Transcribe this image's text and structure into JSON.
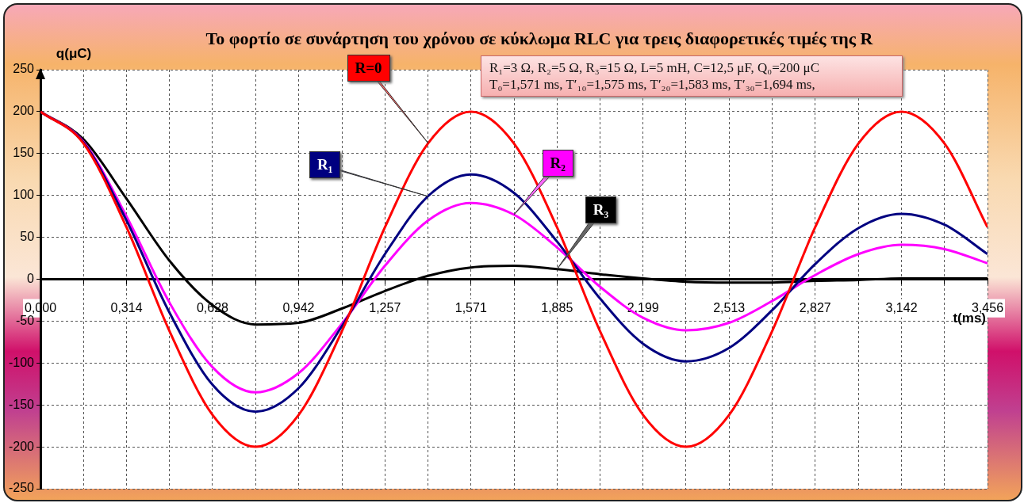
{
  "chart_data": {
    "type": "line",
    "title": "Το φορτίο σε συνάρτηση του χρόνου σε κύκλωμα RLC για τρεις διαφορετικές τιμές της R",
    "xlabel": "t(ms)",
    "ylabel": "q(μC)",
    "annotations": [
      "R₁=3 Ω, R₂=5 Ω, R₃=15 Ω, L=5 mH, C=12,5 μF, Q₀=200 μC",
      "T₀=1,571 ms, T′₁₀=1,575 ms, T′₂₀=1,583 ms, T′₃₀=1,694 ms,"
    ],
    "x": [
      0,
      0.157,
      0.314,
      0.471,
      0.628,
      0.785,
      0.942,
      1.1,
      1.257,
      1.414,
      1.571,
      1.728,
      1.885,
      2.042,
      2.199,
      2.356,
      2.513,
      2.67,
      2.827,
      2.985,
      3.142,
      3.299,
      3.456
    ],
    "series": [
      {
        "name": "R=0",
        "color": "#ff0000",
        "values": [
          200,
          162,
          62,
          -62,
          -162,
          -200,
          -162,
          -62,
          62,
          162,
          200,
          162,
          62,
          -62,
          -162,
          -200,
          -162,
          -62,
          62,
          162,
          200,
          162,
          62
        ]
      },
      {
        "name": "R₁",
        "color": "#000080",
        "values": [
          200,
          163,
          70,
          -40,
          -126,
          -158,
          -130,
          -56,
          30,
          99,
          125,
          103,
          45,
          -23,
          -77,
          -98,
          -82,
          -37,
          18,
          61,
          78,
          65,
          30
        ]
      },
      {
        "name": "R₂",
        "color": "#ff00ff",
        "values": [
          200,
          164,
          75,
          -28,
          -105,
          -135,
          -112,
          -53,
          16,
          70,
          91,
          77,
          38,
          -9,
          -46,
          -61,
          -52,
          -26,
          5,
          30,
          41,
          36,
          19
        ]
      },
      {
        "name": "R₃",
        "color": "#000000",
        "values": [
          200,
          167,
          96,
          22,
          -31,
          -54,
          -52,
          -35,
          -14,
          4,
          14,
          16,
          12,
          6,
          1,
          -3,
          -4,
          -4,
          -2,
          -1,
          1,
          1,
          1
        ]
      }
    ],
    "xlim": [
      0,
      3.456
    ],
    "xticks": [
      {
        "value": 0,
        "label": "0,000"
      },
      {
        "value": 0.157,
        "label": null
      },
      {
        "value": 0.314,
        "label": "0,314"
      },
      {
        "value": 0.471,
        "label": null
      },
      {
        "value": 0.628,
        "label": "0,628"
      },
      {
        "value": 0.785,
        "label": null
      },
      {
        "value": 0.942,
        "label": "0,942"
      },
      {
        "value": 1.1,
        "label": null
      },
      {
        "value": 1.257,
        "label": "1,257"
      },
      {
        "value": 1.414,
        "label": null
      },
      {
        "value": 1.571,
        "label": "1,571"
      },
      {
        "value": 1.728,
        "label": null
      },
      {
        "value": 1.885,
        "label": "1,885"
      },
      {
        "value": 2.042,
        "label": null
      },
      {
        "value": 2.199,
        "label": "2,199"
      },
      {
        "value": 2.356,
        "label": null
      },
      {
        "value": 2.513,
        "label": "2,513"
      },
      {
        "value": 2.67,
        "label": null
      },
      {
        "value": 2.827,
        "label": "2,827"
      },
      {
        "value": 2.985,
        "label": null
      },
      {
        "value": 3.142,
        "label": "3,142"
      },
      {
        "value": 3.299,
        "label": null
      },
      {
        "value": 3.456,
        "label": "3,456"
      }
    ],
    "ylim": [
      -250,
      250
    ],
    "yticks": [
      -250,
      -200,
      -150,
      -100,
      -50,
      0,
      50,
      100,
      150,
      200,
      250
    ],
    "grid": true,
    "marker": "none",
    "line_style": "solid"
  }
}
